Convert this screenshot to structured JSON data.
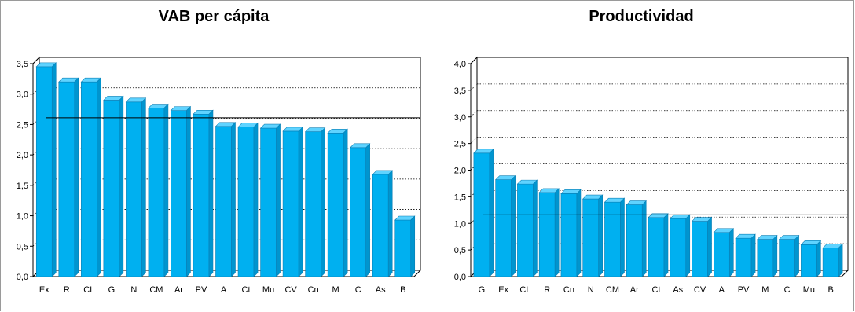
{
  "chart_data": [
    {
      "type": "bar",
      "title": "VAB per cápita",
      "categories": [
        "Ex",
        "R",
        "CL",
        "G",
        "N",
        "CM",
        "Ar",
        "PV",
        "A",
        "Ct",
        "Mu",
        "CV",
        "Cn",
        "M",
        "C",
        "As",
        "B"
      ],
      "values": [
        3.45,
        3.2,
        3.2,
        2.9,
        2.87,
        2.77,
        2.73,
        2.67,
        2.47,
        2.46,
        2.44,
        2.39,
        2.38,
        2.36,
        2.12,
        1.68,
        0.93
      ],
      "reference_line": 2.61,
      "ylim": [
        0,
        3.5
      ],
      "yticks": [
        "0,0",
        "0,5",
        "1,0",
        "1,5",
        "2,0",
        "2,5",
        "3,0",
        "3,5"
      ],
      "grid": true,
      "bar_color": "#00b0f0",
      "xlabel": "",
      "ylabel": ""
    },
    {
      "type": "bar",
      "title": "Productividad",
      "categories": [
        "G",
        "Ex",
        "CL",
        "R",
        "Cn",
        "N",
        "CM",
        "Ar",
        "Ct",
        "As",
        "CV",
        "A",
        "PV",
        "M",
        "C",
        "Mu",
        "B"
      ],
      "values": [
        2.32,
        1.82,
        1.74,
        1.58,
        1.56,
        1.46,
        1.4,
        1.35,
        1.11,
        1.09,
        1.04,
        0.83,
        0.72,
        0.7,
        0.7,
        0.6,
        0.54
      ],
      "reference_line": 1.16,
      "ylim": [
        0,
        4.0
      ],
      "yticks": [
        "0,0",
        "0,5",
        "1,0",
        "1,5",
        "2,0",
        "2,5",
        "3,0",
        "3,5",
        "4,0"
      ],
      "grid": true,
      "bar_color": "#00b0f0",
      "xlabel": "",
      "ylabel": ""
    }
  ]
}
